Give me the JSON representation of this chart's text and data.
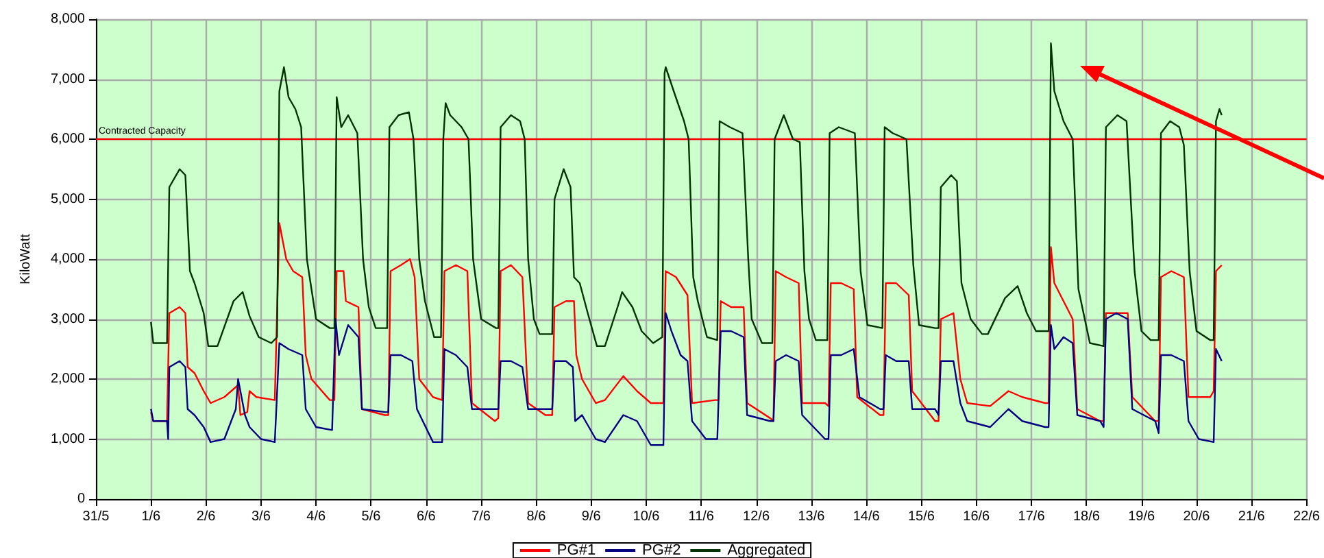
{
  "chart_data": {
    "type": "line",
    "ylabel": "KiloWatt",
    "legend": "bottom",
    "grid": true,
    "marker": "none",
    "line_style": "solid",
    "xlim": [
      "--05-31",
      "--06-22"
    ],
    "xticks": [
      {
        "value": "--05-31",
        "label": "31/5"
      },
      {
        "value": "--06-01",
        "label": "1/6"
      },
      {
        "value": "--06-02",
        "label": "2/6"
      },
      {
        "value": "--06-03",
        "label": "3/6"
      },
      {
        "value": "--06-04",
        "label": "4/6"
      },
      {
        "value": "--06-05",
        "label": "5/6"
      },
      {
        "value": "--06-06",
        "label": "6/6"
      },
      {
        "value": "--06-07",
        "label": "7/6"
      },
      {
        "value": "--06-08",
        "label": "8/6"
      },
      {
        "value": "--06-09",
        "label": "9/6"
      },
      {
        "value": "--06-10",
        "label": "10/6"
      },
      {
        "value": "--06-11",
        "label": "11/6"
      },
      {
        "value": "--06-12",
        "label": "12/6"
      },
      {
        "value": "--06-13",
        "label": "13/6"
      },
      {
        "value": "--06-14",
        "label": "14/6"
      },
      {
        "value": "--06-15",
        "label": "15/6"
      },
      {
        "value": "--06-16",
        "label": "16/6"
      },
      {
        "value": "--06-17",
        "label": "17/6"
      },
      {
        "value": "--06-18",
        "label": "18/6"
      },
      {
        "value": "--06-19",
        "label": "19/6"
      },
      {
        "value": "--06-20",
        "label": "20/6"
      },
      {
        "value": "--06-21",
        "label": "21/6"
      },
      {
        "value": "--06-22",
        "label": "22/6"
      }
    ],
    "ylim": [
      0,
      8000
    ],
    "yticks": [
      0,
      {
        "value": 1000,
        "label": "1,000"
      },
      {
        "value": 2000,
        "label": "2,000"
      },
      {
        "value": 3000,
        "label": "3,000"
      },
      {
        "value": 4000,
        "label": "4,000"
      },
      {
        "value": 5000,
        "label": "5,000"
      },
      {
        "value": 6000,
        "label": "6,000"
      },
      {
        "value": 7000,
        "label": "7,000"
      },
      {
        "value": 8000,
        "label": "8,000"
      }
    ],
    "ref_lines": [
      {
        "axis": "y",
        "value": 6000,
        "label": "Contracted Capacity",
        "color": "#ff0000",
        "line_style": "solid"
      }
    ],
    "series": [
      {
        "name": "PG#1",
        "color": "#ff0000",
        "x": [
          "--06-01T00:00",
          "--06-01T01:00",
          "--06-01T07:00",
          "--06-01T08:00",
          "--06-01T12:30",
          "--06-01T15:00",
          "--06-01T16:00",
          "--06-01T19:00",
          "--06-01T23:00",
          "--06-02T02:00",
          "--06-02T08:00",
          "--06-02T14:00",
          "--06-02T15:00",
          "--06-02T18:00",
          "--06-02T19:00",
          "--06-02T22:00",
          "--06-03T06:00",
          "--06-03T08:00",
          "--06-03T11:00",
          "--06-03T14:00",
          "--06-03T18:00",
          "--06-03T19:30",
          "--06-03T22:00",
          "--06-04T06:00",
          "--06-04T08:00",
          "--06-04T09:00",
          "--06-04T12:00",
          "--06-04T13:00",
          "--06-04T18:30",
          "--06-04T20:00",
          "--06-05T06:00",
          "--06-05T07:30",
          "--06-05T08:30",
          "--06-05T13:00",
          "--06-05T17:00",
          "--06-05T19:00",
          "--06-05T21:00",
          "--06-06T03:00",
          "--06-06T07:00",
          "--06-06T08:00",
          "--06-06T13:00",
          "--06-06T18:00",
          "--06-06T20:00",
          "--06-07T06:00",
          "--06-07T07:30",
          "--06-07T08:30",
          "--06-07T13:00",
          "--06-07T18:00",
          "--06-07T20:30",
          "--06-08T04:00",
          "--06-08T07:00",
          "--06-08T08:00",
          "--06-08T13:00",
          "--06-08T16:30",
          "--06-08T17:30",
          "--06-08T20:00",
          "--06-09T02:00",
          "--06-09T06:00",
          "--06-09T14:00",
          "--06-09T20:00",
          "--06-10T02:00",
          "--06-10T07:30",
          "--06-10T08:30",
          "--06-10T13:00",
          "--06-10T18:00",
          "--06-10T20:00",
          "--06-11T06:00",
          "--06-11T07:30",
          "--06-11T08:30",
          "--06-11T13:00",
          "--06-11T18:30",
          "--06-11T20:00",
          "--06-12T06:00",
          "--06-12T07:30",
          "--06-12T08:30",
          "--06-12T13:00",
          "--06-12T18:30",
          "--06-12T20:00",
          "--06-13T06:00",
          "--06-13T07:30",
          "--06-13T08:30",
          "--06-13T13:00",
          "--06-13T18:30",
          "--06-13T20:00",
          "--06-14T06:00",
          "--06-14T07:30",
          "--06-14T08:30",
          "--06-14T13:00",
          "--06-14T18:30",
          "--06-14T20:00",
          "--06-15T06:00",
          "--06-15T07:30",
          "--06-15T08:30",
          "--06-15T14:00",
          "--06-15T17:00",
          "--06-15T20:00",
          "--06-16T06:00",
          "--06-16T14:00",
          "--06-16T20:00",
          "--06-17T06:00",
          "--06-17T07:30",
          "--06-17T08:30",
          "--06-17T10:00",
          "--06-17T14:00",
          "--06-17T18:00",
          "--06-17T20:00",
          "--06-18T06:00",
          "--06-18T07:30",
          "--06-18T08:30",
          "--06-18T13:00",
          "--06-18T18:00",
          "--06-18T20:00",
          "--06-19T06:00",
          "--06-19T07:30",
          "--06-19T08:30",
          "--06-19T13:00",
          "--06-19T18:30",
          "--06-19T20:30",
          "--06-20T06:00",
          "--06-20T07:30",
          "--06-20T08:30",
          "--06-20T11:00"
        ],
        "values": [
          1450,
          1300,
          1300,
          3100,
          3200,
          3100,
          2200,
          2100,
          1800,
          1600,
          1700,
          1900,
          1400,
          1450,
          1800,
          1700,
          1650,
          4600,
          4000,
          3800,
          3700,
          2400,
          2000,
          1650,
          1650,
          3800,
          3800,
          3300,
          3200,
          1500,
          1400,
          1400,
          3800,
          3900,
          4000,
          3700,
          2000,
          1700,
          1650,
          3800,
          3900,
          3800,
          1600,
          1300,
          1350,
          3800,
          3900,
          3700,
          1600,
          1400,
          1400,
          3200,
          3300,
          3300,
          2400,
          2000,
          1600,
          1650,
          2050,
          1800,
          1600,
          1600,
          3800,
          3700,
          3400,
          1600,
          1650,
          1650,
          3300,
          3200,
          3200,
          1600,
          1350,
          1300,
          3800,
          3700,
          3600,
          1600,
          1600,
          1550,
          3600,
          3600,
          3500,
          1700,
          1400,
          1400,
          3600,
          3600,
          3400,
          1800,
          1300,
          1300,
          3000,
          3100,
          2000,
          1600,
          1550,
          1800,
          1700,
          1600,
          1600,
          4200,
          3600,
          3300,
          3000,
          1500,
          1300,
          1300,
          3100,
          3100,
          3100,
          1700,
          1300,
          1300,
          3700,
          3800,
          3700,
          1700,
          1700,
          1800,
          3800,
          3900
        ]
      },
      {
        "name": "PG#2",
        "color": "#000080",
        "x": [
          "--06-01T00:00",
          "--06-01T01:00",
          "--06-01T07:00",
          "--06-01T07:30",
          "--06-01T08:00",
          "--06-01T12:30",
          "--06-01T15:00",
          "--06-01T16:00",
          "--06-01T19:00",
          "--06-01T23:00",
          "--06-02T02:00",
          "--06-02T08:00",
          "--06-02T13:00",
          "--06-02T14:00",
          "--06-02T17:00",
          "--06-02T19:00",
          "--06-03T00:00",
          "--06-03T06:00",
          "--06-03T08:00",
          "--06-03T12:00",
          "--06-03T18:00",
          "--06-03T19:30",
          "--06-04T00:00",
          "--06-04T07:00",
          "--06-04T08:30",
          "--06-04T10:00",
          "--06-04T14:00",
          "--06-04T18:30",
          "--06-04T20:00",
          "--06-05T06:00",
          "--06-05T07:30",
          "--06-05T08:30",
          "--06-05T13:00",
          "--06-05T18:00",
          "--06-05T20:00",
          "--06-06T03:00",
          "--06-06T07:00",
          "--06-06T08:00",
          "--06-06T13:00",
          "--06-06T18:00",
          "--06-06T20:00",
          "--06-07T06:00",
          "--06-07T07:30",
          "--06-07T08:30",
          "--06-07T13:00",
          "--06-07T18:00",
          "--06-07T20:30",
          "--06-08T04:00",
          "--06-08T07:00",
          "--06-08T08:00",
          "--06-08T13:00",
          "--06-08T16:00",
          "--06-08T17:00",
          "--06-08T20:00",
          "--06-09T02:00",
          "--06-09T06:00",
          "--06-09T14:00",
          "--06-09T20:00",
          "--06-10T02:00",
          "--06-10T07:30",
          "--06-10T08:30",
          "--06-10T11:00",
          "--06-10T15:00",
          "--06-10T18:00",
          "--06-10T20:00",
          "--06-11T02:00",
          "--06-11T07:00",
          "--06-11T08:30",
          "--06-11T13:00",
          "--06-11T18:30",
          "--06-11T20:00",
          "--06-12T06:00",
          "--06-12T07:30",
          "--06-12T08:30",
          "--06-12T13:00",
          "--06-12T18:30",
          "--06-12T20:00",
          "--06-13T06:00",
          "--06-13T07:30",
          "--06-13T08:30",
          "--06-13T13:00",
          "--06-13T18:30",
          "--06-13T21:00",
          "--06-14T06:00",
          "--06-14T07:30",
          "--06-14T08:30",
          "--06-14T13:00",
          "--06-14T18:30",
          "--06-14T20:00",
          "--06-15T06:00",
          "--06-15T07:30",
          "--06-15T08:30",
          "--06-15T14:00",
          "--06-15T17:00",
          "--06-15T20:00",
          "--06-16T06:00",
          "--06-16T14:00",
          "--06-16T20:00",
          "--06-17T06:00",
          "--06-17T07:30",
          "--06-17T08:30",
          "--06-17T10:00",
          "--06-17T14:00",
          "--06-17T18:00",
          "--06-17T20:00",
          "--06-18T06:00",
          "--06-18T07:30",
          "--06-18T08:30",
          "--06-18T13:00",
          "--06-18T18:00",
          "--06-18T20:00",
          "--06-19T06:00",
          "--06-19T07:30",
          "--06-19T08:30",
          "--06-19T13:00",
          "--06-19T18:30",
          "--06-19T20:30",
          "--06-20T01:00",
          "--06-20T07:30",
          "--06-20T08:30",
          "--06-20T11:00"
        ],
        "values": [
          1500,
          1300,
          1300,
          1000,
          2200,
          2300,
          2200,
          1500,
          1400,
          1200,
          950,
          1000,
          1500,
          2000,
          1400,
          1200,
          1000,
          950,
          2600,
          2500,
          2400,
          1500,
          1200,
          1150,
          3000,
          2400,
          2900,
          2700,
          1500,
          1450,
          1450,
          2400,
          2400,
          2300,
          1500,
          950,
          950,
          2500,
          2400,
          2200,
          1500,
          1500,
          1500,
          2300,
          2300,
          2200,
          1500,
          1500,
          1500,
          2300,
          2300,
          2200,
          1300,
          1400,
          1000,
          950,
          1400,
          1300,
          900,
          900,
          3100,
          2800,
          2400,
          2300,
          1300,
          1000,
          1000,
          2800,
          2800,
          2700,
          1400,
          1300,
          1300,
          2300,
          2400,
          2300,
          1400,
          1000,
          1000,
          2400,
          2400,
          2500,
          1700,
          1500,
          1500,
          2400,
          2300,
          2300,
          1500,
          1500,
          1400,
          2300,
          2300,
          1600,
          1300,
          1200,
          1500,
          1300,
          1200,
          1200,
          2900,
          2500,
          2700,
          2600,
          1400,
          1300,
          1200,
          3000,
          3100,
          3000,
          1500,
          1300,
          1100,
          2400,
          2400,
          2300,
          1300,
          1000,
          950,
          2500,
          2300
        ]
      },
      {
        "name": "Aggregated",
        "color": "#003300",
        "x": [
          "--06-01T00:00",
          "--06-01T01:00",
          "--06-01T07:00",
          "--06-01T08:00",
          "--06-01T12:30",
          "--06-01T15:00",
          "--06-01T17:00",
          "--06-01T19:00",
          "--06-01T23:00",
          "--06-02T01:00",
          "--06-02T05:00",
          "--06-02T12:00",
          "--06-02T16:00",
          "--06-02T19:00",
          "--06-02T23:00",
          "--06-03T04:30",
          "--06-03T07:00",
          "--06-03T08:00",
          "--06-03T10:00",
          "--06-03T12:00",
          "--06-03T15:00",
          "--06-03T17:30",
          "--06-03T20:00",
          "--06-04T00:00",
          "--06-04T06:00",
          "--06-04T08:00",
          "--06-04T09:00",
          "--06-04T11:00",
          "--06-04T14:00",
          "--06-04T18:00",
          "--06-04T20:30",
          "--06-04T23:00",
          "--06-05T02:00",
          "--06-05T07:00",
          "--06-05T08:00",
          "--06-05T12:00",
          "--06-05T16:30",
          "--06-05T18:30",
          "--06-05T21:00",
          "--06-05T23:30",
          "--06-06T03:30",
          "--06-06T06:30",
          "--06-06T07:30",
          "--06-06T08:30",
          "--06-06T10:30",
          "--06-06T15:30",
          "--06-06T18:30",
          "--06-06T20:30",
          "--06-07T00:00",
          "--06-07T06:30",
          "--06-07T07:30",
          "--06-07T08:30",
          "--06-07T13:00",
          "--06-07T17:00",
          "--06-07T19:00",
          "--06-07T20:30",
          "--06-07T23:00",
          "--06-08T01:30",
          "--06-08T07:00",
          "--06-08T08:00",
          "--06-08T12:00",
          "--06-08T15:00",
          "--06-08T16:30",
          "--06-08T19:00",
          "--06-08T22:30",
          "--06-09T02:30",
          "--06-09T06:00",
          "--06-09T11:30",
          "--06-09T13:30",
          "--06-09T18:00",
          "--06-09T22:00",
          "--06-10T03:00",
          "--06-10T07:00",
          "--06-10T08:00",
          "--06-10T08:30",
          "--06-10T12:00",
          "--06-10T16:30",
          "--06-10T18:30",
          "--06-10T20:30",
          "--06-10T22:30",
          "--06-11T02:30",
          "--06-11T07:00",
          "--06-11T08:00",
          "--06-11T12:30",
          "--06-11T18:00",
          "--06-11T20:30",
          "--06-11T22:00",
          "--06-12T02:30",
          "--06-12T07:00",
          "--06-12T08:00",
          "--06-12T12:00",
          "--06-12T16:00",
          "--06-12T19:00",
          "--06-12T21:00",
          "--06-12T23:00",
          "--06-13T02:00",
          "--06-13T07:00",
          "--06-13T08:00",
          "--06-13T12:00",
          "--06-13T19:00",
          "--06-13T21:30",
          "--06-14T00:30",
          "--06-14T07:00",
          "--06-14T08:00",
          "--06-14T11:30",
          "--06-14T17:30",
          "--06-14T20:30",
          "--06-14T23:00",
          "--06-15T06:00",
          "--06-15T07:30",
          "--06-15T08:30",
          "--06-15T13:00",
          "--06-15T15:30",
          "--06-15T17:30",
          "--06-15T21:30",
          "--06-16T02:30",
          "--06-16T05:00",
          "--06-16T12:30",
          "--06-16T18:00",
          "--06-16T22:00",
          "--06-17T02:00",
          "--06-17T07:30",
          "--06-17T08:30",
          "--06-17T10:00",
          "--06-17T14:00",
          "--06-17T18:00",
          "--06-17T20:30",
          "--06-18T01:30",
          "--06-18T07:30",
          "--06-18T08:30",
          "--06-18T13:30",
          "--06-18T17:30",
          "--06-18T21:00",
          "--06-19T00:00",
          "--06-19T04:00",
          "--06-19T07:30",
          "--06-19T08:30",
          "--06-19T12:30",
          "--06-19T16:30",
          "--06-19T18:30",
          "--06-19T21:00",
          "--06-20T00:00",
          "--06-20T06:00",
          "--06-20T07:30",
          "--06-20T08:30",
          "--06-20T10:00",
          "--06-20T11:00"
        ],
        "values": [
          2950,
          2600,
          2600,
          5200,
          5500,
          5400,
          3800,
          3600,
          3100,
          2550,
          2550,
          3300,
          3450,
          3050,
          2700,
          2600,
          2700,
          6800,
          7200,
          6700,
          6500,
          6200,
          4000,
          3000,
          2850,
          2850,
          6700,
          6200,
          6400,
          6100,
          4000,
          3200,
          2850,
          2850,
          6200,
          6400,
          6450,
          6000,
          4000,
          3300,
          2700,
          2700,
          6000,
          6600,
          6400,
          6200,
          6000,
          4000,
          3000,
          2850,
          2850,
          6200,
          6400,
          6300,
          6000,
          4000,
          3000,
          2750,
          2750,
          5000,
          5500,
          5200,
          3700,
          3600,
          3100,
          2550,
          2550,
          3200,
          3450,
          3200,
          2800,
          2600,
          2700,
          7100,
          7200,
          6800,
          6300,
          6000,
          3700,
          3300,
          2700,
          2650,
          6300,
          6200,
          6100,
          4000,
          3000,
          2600,
          2600,
          6000,
          6400,
          6000,
          5950,
          3800,
          3000,
          2650,
          2650,
          6100,
          6200,
          6100,
          3800,
          2900,
          2850,
          6200,
          6100,
          6000,
          3900,
          2900,
          2850,
          2850,
          5200,
          5400,
          5300,
          3600,
          3000,
          2750,
          2750,
          3350,
          3550,
          3100,
          2800,
          2800,
          7600,
          6800,
          6300,
          6000,
          3500,
          2600,
          2550,
          6200,
          6400,
          6300,
          3800,
          2800,
          2650,
          2650,
          6100,
          6300,
          6200,
          5900,
          3800,
          2800,
          2650,
          2650,
          6300,
          6500,
          6400
        ]
      }
    ]
  }
}
